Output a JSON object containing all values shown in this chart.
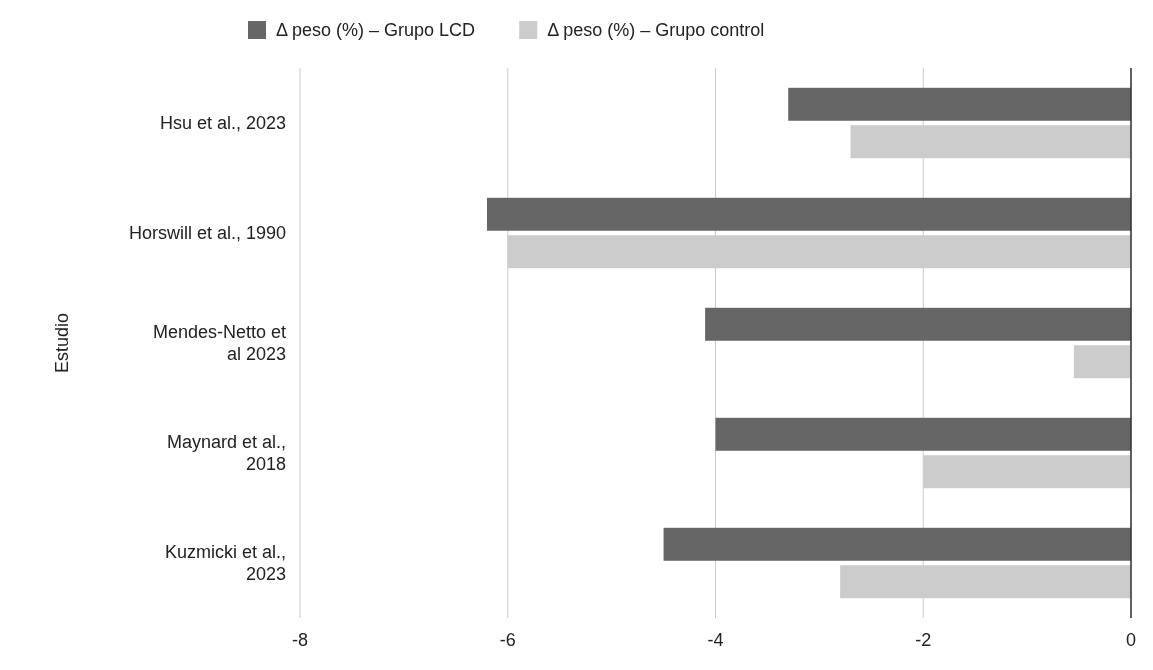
{
  "chart_data": {
    "type": "bar",
    "orientation": "horizontal",
    "ylabel": "Estudio",
    "categories": [
      "Hsu et al., 2023",
      "Horswill et al., 1990",
      "Mendes-Netto et\nal 2023",
      "Maynard et al.,\n2018",
      "Kuzmicki et al.,\n2023"
    ],
    "series": [
      {
        "name": "Δ peso (%) – Grupo LCD",
        "color": "#666666",
        "values": [
          -3.3,
          -6.2,
          -4.1,
          -4.0,
          -4.5
        ]
      },
      {
        "name": "Δ peso (%) – Grupo control",
        "color": "#cccccc",
        "values": [
          -2.7,
          -6.0,
          -0.55,
          -2.0,
          -2.8
        ]
      }
    ],
    "xlim": [
      -8,
      0
    ],
    "xticks": [
      -8,
      -6,
      -4,
      -2,
      0
    ],
    "grid": "x",
    "legend": "top"
  }
}
